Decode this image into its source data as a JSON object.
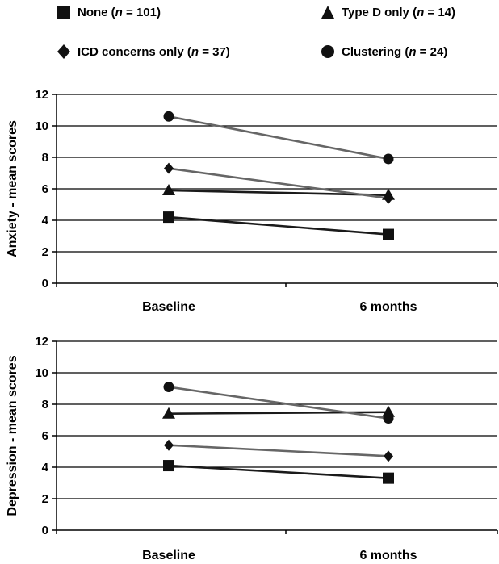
{
  "legend": [
    {
      "symbol": "square",
      "label": "None (",
      "n_label": "n",
      "rest": " = 101)"
    },
    {
      "symbol": "triangle",
      "label": "Type D  only (",
      "n_label": "n",
      "rest": " = 14)"
    },
    {
      "symbol": "diamond",
      "label": "ICD concerns only (",
      "n_label": "n",
      "rest": " = 37)"
    },
    {
      "symbol": "circle",
      "label": "Clustering (",
      "n_label": "n",
      "rest": " = 24)"
    }
  ],
  "chart_data": [
    {
      "type": "line",
      "title": "",
      "ylabel": "Anxiety - mean scores",
      "xlabel": "",
      "categories": [
        "Baseline",
        "6 months"
      ],
      "ylim": [
        0,
        12
      ],
      "yticks": [
        0,
        2,
        4,
        6,
        8,
        10,
        12
      ],
      "grid": true,
      "series": [
        {
          "name": "None (n = 101)",
          "marker": "square",
          "color": "#1a1a1a",
          "values": [
            4.2,
            3.1
          ]
        },
        {
          "name": "Type D  only (n = 14)",
          "marker": "triangle",
          "color": "#1a1a1a",
          "values": [
            5.9,
            5.6
          ]
        },
        {
          "name": "ICD concerns only (n = 37)",
          "marker": "diamond",
          "color": "#666666",
          "values": [
            7.3,
            5.4
          ]
        },
        {
          "name": "Clustering (n = 24)",
          "marker": "circle",
          "color": "#666666",
          "values": [
            10.6,
            7.9
          ]
        }
      ]
    },
    {
      "type": "line",
      "title": "",
      "ylabel": "Depression - mean scores",
      "xlabel": "",
      "categories": [
        "Baseline",
        "6 months"
      ],
      "ylim": [
        0,
        12
      ],
      "yticks": [
        0,
        2,
        4,
        6,
        8,
        10,
        12
      ],
      "grid": true,
      "series": [
        {
          "name": "None (n = 101)",
          "marker": "square",
          "color": "#1a1a1a",
          "values": [
            4.1,
            3.3
          ]
        },
        {
          "name": "Type D  only (n = 14)",
          "marker": "triangle",
          "color": "#1a1a1a",
          "values": [
            7.4,
            7.5
          ]
        },
        {
          "name": "ICD concerns only (n = 37)",
          "marker": "diamond",
          "color": "#666666",
          "values": [
            5.4,
            4.7
          ]
        },
        {
          "name": "Clustering (n = 24)",
          "marker": "circle",
          "color": "#666666",
          "values": [
            9.1,
            7.1
          ]
        }
      ]
    }
  ]
}
